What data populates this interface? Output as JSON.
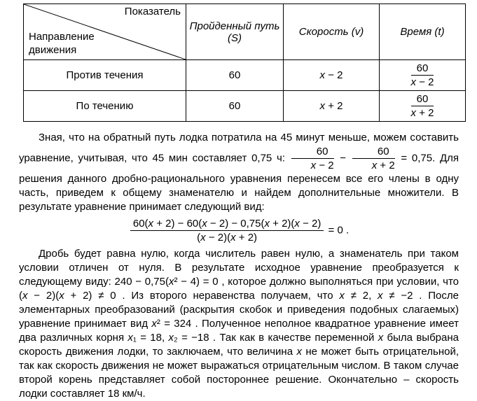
{
  "table": {
    "header": {
      "diag_top": "Показатель",
      "diag_bottom": "Направление движения",
      "cols": [
        "Пройденный путь (S)",
        "Скорость (v)",
        "Время (t)"
      ]
    },
    "rows": [
      {
        "direction": "Против течения",
        "distance": "60",
        "speed": [
          {
            "m": "x − 2"
          }
        ],
        "time": [
          {
            "frac": {
              "num": "60",
              "den": "x − 2"
            }
          }
        ]
      },
      {
        "direction": "По течению",
        "distance": "60",
        "speed": [
          {
            "m": "x + 2"
          }
        ],
        "time": [
          {
            "frac": {
              "num": "60",
              "den": "x + 2"
            }
          }
        ]
      }
    ]
  },
  "paragraph1": [
    {
      "t": "Зная, что на обратный путь лодка потратила на 45 минут меньше, можем составить уравнение, учитывая, что 45 мин составляет 0,75 ч: "
    },
    {
      "frac": {
        "num": "60",
        "den": "x − 2"
      }
    },
    {
      "m": " − "
    },
    {
      "frac": {
        "num": "60",
        "den": "x + 2"
      }
    },
    {
      "m": " = 0,75"
    },
    {
      "t": ". Для решения данного дробно-рационального уравнения перенесем все его члены в одну часть, приведем к общему знаменателю и найдем дополнительные множители. В результате уравнение принимает следующий вид:"
    }
  ],
  "equation": [
    {
      "frac": {
        "num": "60(x + 2) − 60(x − 2) − 0,75(x + 2)(x − 2)",
        "den": "(x − 2)(x + 2)"
      }
    },
    {
      "m": " = 0"
    },
    {
      "t": " ."
    }
  ],
  "paragraph2": [
    {
      "t": "Дробь будет равна нулю, когда числитель равен нулю, а знаменатель при таком условии отличен от нуля. В результате исходное уравнение преобразуется к следующему виду: "
    },
    {
      "m": "240 − 0,75(x² − 4) = 0"
    },
    {
      "t": " , которое должно выполняться при условии, что "
    },
    {
      "m": "(x − 2)(x + 2) ≠ 0"
    },
    {
      "t": " . Из второго неравенства получаем, что "
    },
    {
      "m": "x ≠ 2, x ≠ −2"
    },
    {
      "t": " . После элементарных преобразований (раскрытия скобок и приведения подобных слагаемых) уравнение принимает вид "
    },
    {
      "m": "x² = 324"
    },
    {
      "t": " . Полученное неполное квадратное уравнение имеет два различных корня "
    },
    {
      "m": "x₁ = 18, x₂ = −18"
    },
    {
      "t": " . Так как в качестве переменной "
    },
    {
      "m": "x"
    },
    {
      "t": " была выбрана скорость движения лодки, то заключаем, что величина "
    },
    {
      "m": "x"
    },
    {
      "t": " не может быть отрицательной, так как скорость движения не может выражаться отрицательным числом. В таком случае второй корень представляет собой постороннее решение. Окончательно – скорость лодки составляет 18 км/ч."
    }
  ]
}
